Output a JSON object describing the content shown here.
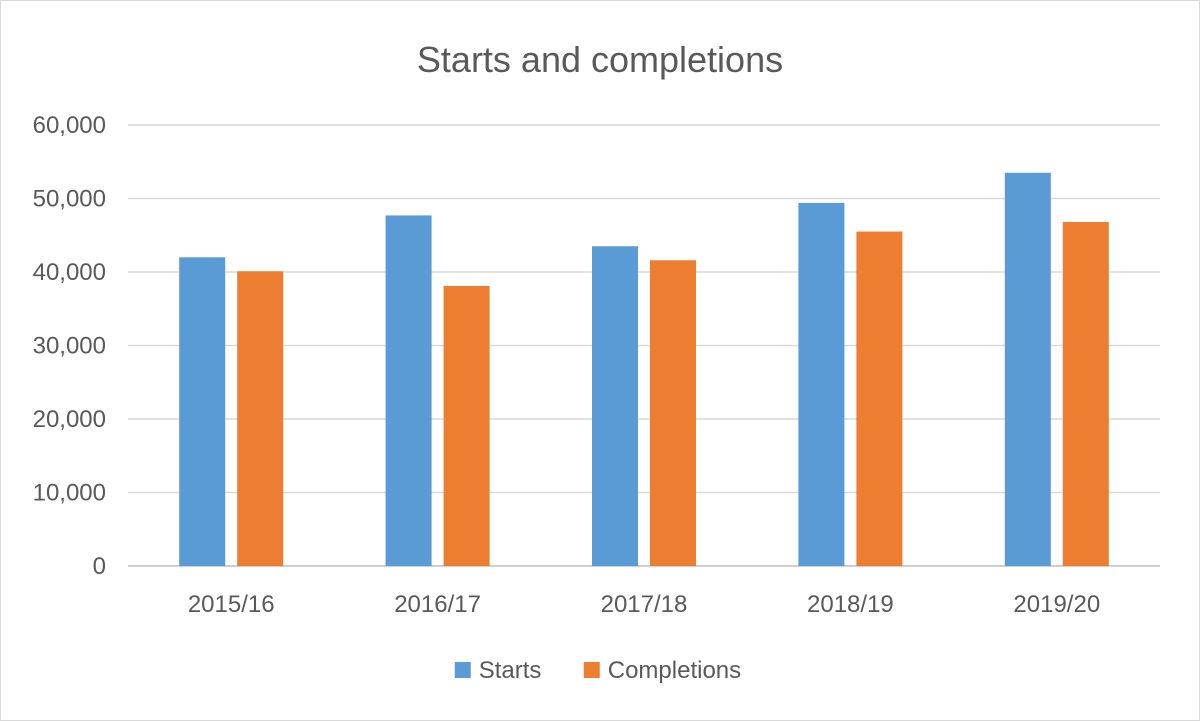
{
  "chart_data": {
    "type": "bar",
    "title": "Starts and completions",
    "categories": [
      "2015/16",
      "2016/17",
      "2017/18",
      "2018/19",
      "2019/20"
    ],
    "series": [
      {
        "name": "Starts",
        "color": "#5b9bd5",
        "values": [
          42000,
          47700,
          43500,
          49400,
          53500
        ]
      },
      {
        "name": "Completions",
        "color": "#ed7d31",
        "values": [
          40100,
          38100,
          41600,
          45500,
          46800
        ]
      }
    ],
    "y_ticks": [
      "0",
      "10,000",
      "20,000",
      "30,000",
      "40,000",
      "50,000",
      "60,000"
    ],
    "ylim": [
      0,
      60000
    ],
    "grid": true,
    "legend_position": "bottom"
  }
}
